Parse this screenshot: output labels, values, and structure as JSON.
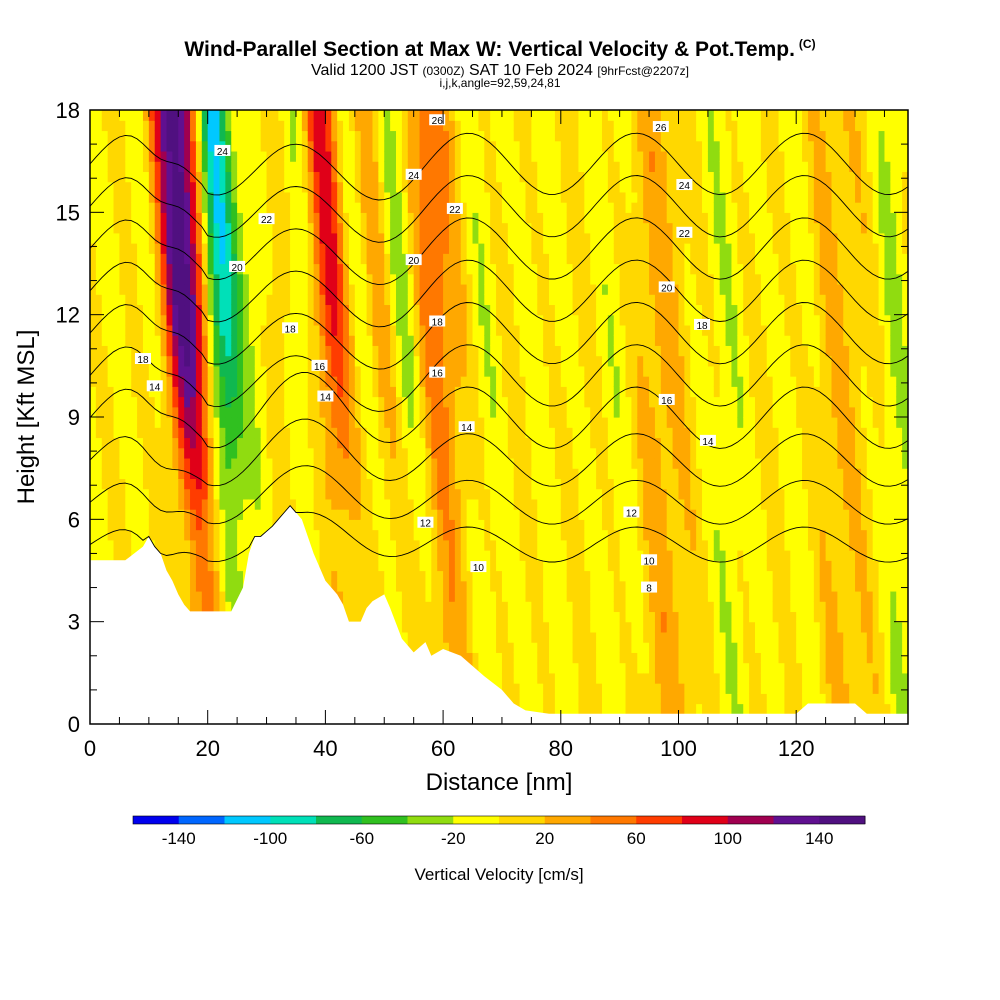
{
  "title": {
    "main": "Wind-Parallel Section at Max W: Vertical Velocity & Pot.Temp.",
    "copyright": "(C)",
    "valid_prefix": "Valid 1200 JST",
    "valid_utc": "(0300Z)",
    "valid_date": "SAT 10 Feb 2024",
    "forecast": "[9hrFcst@2207z]",
    "indices": "i,j,k,angle=92,59,24,81"
  },
  "chart_data": {
    "type": "heatmap",
    "xlabel": "Distance [nm]",
    "ylabel": "Height [Kft MSL]",
    "xlim": [
      0,
      139
    ],
    "ylim": [
      0,
      18
    ],
    "x_ticks": [
      0,
      20,
      40,
      60,
      80,
      100,
      120
    ],
    "y_ticks": [
      0,
      3,
      6,
      9,
      12,
      15,
      18
    ],
    "colorbar": {
      "label": "Vertical Velocity [cm/s]",
      "tick_values": [
        -140,
        -100,
        -60,
        -20,
        20,
        60,
        100,
        140
      ],
      "tick_labels": [
        "-140",
        "-100",
        "-60",
        "-20",
        "20",
        "60",
        "100",
        "140"
      ],
      "bins": [
        -160,
        -140,
        -120,
        -100,
        -80,
        -60,
        -40,
        -20,
        0,
        20,
        40,
        60,
        80,
        100,
        120,
        140,
        160
      ],
      "colors": [
        "#0000ee",
        "#0066ff",
        "#00c8ff",
        "#00e0b8",
        "#10b850",
        "#30c020",
        "#90dc10",
        "#ffff00",
        "#ffd800",
        "#ffa800",
        "#ff7800",
        "#ff3c00",
        "#e00018",
        "#a00050",
        "#601090",
        "#501080"
      ]
    },
    "terrain": {
      "x": [
        0,
        6,
        9,
        10,
        11,
        12,
        13,
        14,
        15,
        16,
        17,
        19,
        20,
        22,
        24,
        26,
        27,
        28,
        29,
        31,
        34,
        36,
        37,
        38,
        40,
        42,
        43,
        44,
        46,
        47,
        48,
        50,
        51,
        53,
        55,
        57,
        58,
        60,
        63,
        65,
        67,
        70,
        72,
        74,
        78,
        82,
        86,
        90,
        94,
        98,
        102,
        106,
        110,
        114,
        118,
        120,
        122,
        124,
        128,
        130,
        132,
        134,
        137,
        139
      ],
      "y": [
        4.8,
        4.8,
        5.2,
        5.5,
        5.2,
        5.0,
        4.5,
        4.2,
        3.8,
        3.5,
        3.3,
        3.3,
        3.3,
        3.3,
        3.3,
        4.0,
        5.0,
        5.5,
        5.5,
        5.8,
        6.4,
        6.0,
        5.5,
        5.0,
        4.2,
        3.8,
        3.5,
        3.0,
        3.0,
        3.4,
        3.6,
        3.8,
        3.4,
        2.5,
        2.1,
        2.4,
        2.0,
        2.2,
        2.0,
        1.7,
        1.4,
        1.0,
        0.6,
        0.4,
        0.3,
        0.3,
        0.3,
        0.3,
        0.3,
        0.3,
        0.3,
        0.3,
        0.3,
        0.3,
        0.3,
        0.3,
        0.6,
        0.6,
        0.6,
        0.6,
        0.3,
        0.3,
        0.3,
        0.3
      ]
    },
    "velocity_bands": [
      {
        "x": 0,
        "amp": 10,
        "w": 6
      },
      {
        "x": 5,
        "amp": -25,
        "w": 4
      },
      {
        "x": 8,
        "amp": 30,
        "w": 3
      },
      {
        "x": 12,
        "amp": -50,
        "w": 3
      },
      {
        "x": 16,
        "amp": 120,
        "w": 3
      },
      {
        "x": 19,
        "amp": 80,
        "w": 3
      },
      {
        "x": 23,
        "amp": -150,
        "w": 2.5
      },
      {
        "x": 26,
        "amp": 40,
        "w": 2
      },
      {
        "x": 29,
        "amp": -40,
        "w": 2.5
      },
      {
        "x": 33,
        "amp": 40,
        "w": 3
      },
      {
        "x": 37,
        "amp": -60,
        "w": 2.5
      },
      {
        "x": 42,
        "amp": 110,
        "w": 3
      },
      {
        "x": 46,
        "amp": -70,
        "w": 2.5
      },
      {
        "x": 50,
        "amp": 60,
        "w": 3
      },
      {
        "x": 54,
        "amp": -70,
        "w": 2.5
      },
      {
        "x": 58,
        "amp": 50,
        "w": 3
      },
      {
        "x": 62,
        "amp": 30,
        "w": 4
      },
      {
        "x": 67,
        "amp": -30,
        "w": 3
      },
      {
        "x": 72,
        "amp": 15,
        "w": 3
      },
      {
        "x": 77,
        "amp": -20,
        "w": 4
      },
      {
        "x": 84,
        "amp": 15,
        "w": 6
      },
      {
        "x": 90,
        "amp": -25,
        "w": 4
      },
      {
        "x": 96,
        "amp": 35,
        "w": 3
      },
      {
        "x": 102,
        "amp": 15,
        "w": 4
      },
      {
        "x": 108,
        "amp": -25,
        "w": 4
      },
      {
        "x": 116,
        "amp": 10,
        "w": 6
      },
      {
        "x": 121,
        "amp": -20,
        "w": 3
      },
      {
        "x": 126,
        "amp": 25,
        "w": 3
      },
      {
        "x": 133,
        "amp": 10,
        "w": 4
      },
      {
        "x": 137,
        "amp": -30,
        "w": 2
      }
    ],
    "potential_temperature_contours": {
      "levels": [
        8,
        10,
        12,
        14,
        16,
        18,
        20,
        22,
        24,
        26
      ],
      "labels": [
        {
          "text": "24",
          "x": 22.5,
          "y": 16.8
        },
        {
          "text": "22",
          "x": 30,
          "y": 14.8
        },
        {
          "text": "20",
          "x": 25,
          "y": 13.4
        },
        {
          "text": "18",
          "x": 34,
          "y": 11.6
        },
        {
          "text": "18",
          "x": 9,
          "y": 10.7
        },
        {
          "text": "16",
          "x": 39,
          "y": 10.5
        },
        {
          "text": "14",
          "x": 11,
          "y": 9.9
        },
        {
          "text": "14",
          "x": 40,
          "y": 9.6
        },
        {
          "text": "26",
          "x": 59,
          "y": 17.7
        },
        {
          "text": "24",
          "x": 55,
          "y": 16.1
        },
        {
          "text": "22",
          "x": 62,
          "y": 15.1
        },
        {
          "text": "20",
          "x": 55,
          "y": 13.6
        },
        {
          "text": "18",
          "x": 59,
          "y": 11.8
        },
        {
          "text": "16",
          "x": 59,
          "y": 10.3
        },
        {
          "text": "14",
          "x": 64,
          "y": 8.7
        },
        {
          "text": "12",
          "x": 57,
          "y": 5.9
        },
        {
          "text": "10",
          "x": 66,
          "y": 4.6
        },
        {
          "text": "26",
          "x": 97,
          "y": 17.5
        },
        {
          "text": "24",
          "x": 101,
          "y": 15.8
        },
        {
          "text": "22",
          "x": 101,
          "y": 14.4
        },
        {
          "text": "20",
          "x": 98,
          "y": 12.8
        },
        {
          "text": "18",
          "x": 104,
          "y": 11.7
        },
        {
          "text": "16",
          "x": 98,
          "y": 9.5
        },
        {
          "text": "14",
          "x": 105,
          "y": 8.3
        },
        {
          "text": "12",
          "x": 92,
          "y": 6.2
        },
        {
          "text": "10",
          "x": 95,
          "y": 4.8
        },
        {
          "text": "8",
          "x": 95,
          "y": 4.0
        }
      ]
    }
  }
}
